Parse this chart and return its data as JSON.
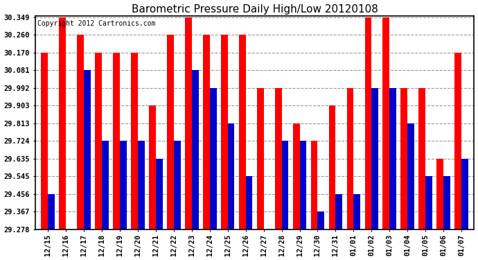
{
  "title": "Barometric Pressure Daily High/Low 20120108",
  "copyright": "Copyright 2012 Cartronics.com",
  "categories": [
    "12/15",
    "12/16",
    "12/17",
    "12/18",
    "12/19",
    "12/20",
    "12/21",
    "12/22",
    "12/23",
    "12/24",
    "12/25",
    "12/26",
    "12/27",
    "12/28",
    "12/29",
    "12/30",
    "12/31",
    "01/01",
    "01/02",
    "01/03",
    "01/04",
    "01/05",
    "01/06",
    "01/07"
  ],
  "highs": [
    30.17,
    30.349,
    30.26,
    30.17,
    30.17,
    30.17,
    29.903,
    30.26,
    30.349,
    30.26,
    30.26,
    30.26,
    29.992,
    29.992,
    29.813,
    29.724,
    29.903,
    29.992,
    30.349,
    30.349,
    29.992,
    29.992,
    29.635,
    30.17
  ],
  "lows": [
    29.456,
    29.278,
    30.081,
    29.724,
    29.724,
    29.724,
    29.635,
    29.724,
    30.081,
    29.992,
    29.813,
    29.545,
    29.278,
    29.724,
    29.724,
    29.367,
    29.456,
    29.456,
    29.992,
    29.992,
    29.813,
    29.545,
    29.545,
    29.635
  ],
  "high_color": "#ff0000",
  "low_color": "#0000cc",
  "bg_color": "#ffffff",
  "grid_color": "#999999",
  "yticks": [
    29.278,
    29.367,
    29.456,
    29.545,
    29.635,
    29.724,
    29.813,
    29.903,
    29.992,
    30.081,
    30.17,
    30.26,
    30.349
  ],
  "ymin": 29.278,
  "ymax": 30.349,
  "bar_width": 0.38,
  "figwidth": 6.9,
  "figheight": 3.75,
  "dpi": 100
}
